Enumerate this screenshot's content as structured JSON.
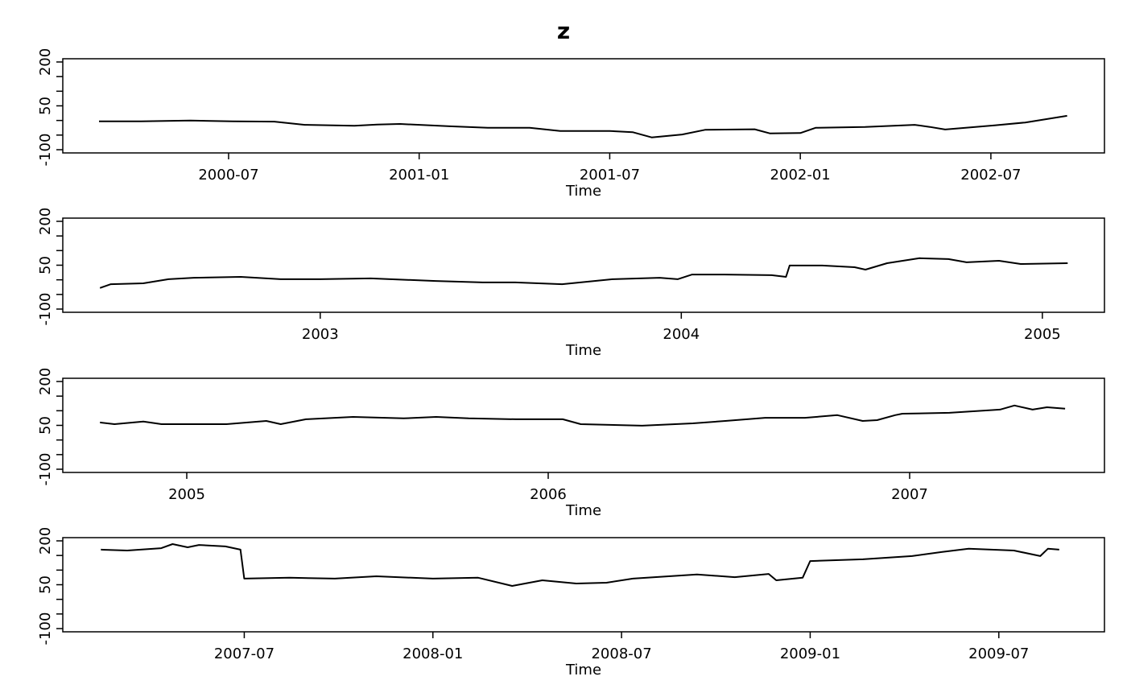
{
  "title": "z",
  "chart_data": [
    {
      "type": "line",
      "x_label": "Time",
      "color": "#000000",
      "x": [
        2000.16,
        2000.27,
        2000.4,
        2000.51,
        2000.62,
        2000.7,
        2000.83,
        2000.89,
        2000.95,
        2001.08,
        2001.18,
        2001.29,
        2001.37,
        2001.5,
        2001.56,
        2001.61,
        2001.69,
        2001.75,
        2001.88,
        2001.92,
        2002.0,
        2002.04,
        2002.17,
        2002.3,
        2002.34,
        2002.38,
        2002.51,
        2002.59,
        2002.7
      ],
      "values": [
        -3,
        -3,
        0,
        -3,
        -4,
        -15,
        -18,
        -14,
        -12,
        -20,
        -25,
        -25,
        -36,
        -36,
        -40,
        -58,
        -48,
        -32,
        -30,
        -44,
        -43,
        -25,
        -22,
        -15,
        -22,
        -31,
        -17,
        -7,
        16
      ],
      "xlim": [
        2000.065,
        2002.798
      ],
      "xticks": [
        {
          "value": 2000.5,
          "label": "2000-07"
        },
        {
          "value": 2001.0,
          "label": "2001-01"
        },
        {
          "value": 2001.5,
          "label": "2001-07"
        },
        {
          "value": 2002.0,
          "label": "2002-01"
        },
        {
          "value": 2002.5,
          "label": "2002-07"
        }
      ],
      "ylim": [
        -111,
        211
      ],
      "yticks": [
        -100,
        -50,
        0,
        50,
        100,
        150,
        200
      ],
      "ylabels": [
        -100,
        50,
        200
      ]
    },
    {
      "type": "line",
      "x_label": "Time",
      "color": "#000000",
      "x": [
        2002.39,
        2002.42,
        2002.51,
        2002.58,
        2002.65,
        2002.78,
        2002.89,
        2003.0,
        2003.14,
        2003.32,
        2003.45,
        2003.54,
        2003.67,
        2003.81,
        2003.94,
        2003.99,
        2004.03,
        2004.12,
        2004.25,
        2004.29,
        2004.3,
        2004.39,
        2004.48,
        2004.51,
        2004.57,
        2004.66,
        2004.74,
        2004.79,
        2004.88,
        2004.94,
        2005.07
      ],
      "values": [
        -28,
        -15,
        -12,
        2,
        7,
        10,
        2,
        2,
        5,
        -4,
        -9,
        -9,
        -15,
        2,
        7,
        2,
        18,
        18,
        16,
        10,
        49,
        49,
        43,
        35,
        57,
        74,
        71,
        60,
        65,
        54,
        57
      ],
      "xlim": [
        2002.287,
        2005.172
      ],
      "xticks": [
        2003,
        2004,
        2005
      ],
      "ylim": [
        -111,
        211
      ],
      "yticks": [
        -100,
        -50,
        0,
        50,
        100,
        150,
        200
      ],
      "ylabels": [
        -100,
        50,
        200
      ]
    },
    {
      "type": "line",
      "x_label": "Time",
      "color": "#000000",
      "x": [
        2004.76,
        2004.8,
        2004.88,
        2004.93,
        2005.11,
        2005.22,
        2005.26,
        2005.33,
        2005.46,
        2005.6,
        2005.69,
        2005.78,
        2005.91,
        2006.04,
        2006.09,
        2006.26,
        2006.4,
        2006.49,
        2006.6,
        2006.71,
        2006.8,
        2006.87,
        2006.91,
        2006.96,
        2006.98,
        2007.11,
        2007.25,
        2007.29,
        2007.34,
        2007.38,
        2007.43
      ],
      "values": [
        60,
        54,
        63,
        54,
        54,
        65,
        54,
        71,
        79,
        74,
        79,
        74,
        71,
        71,
        54,
        49,
        57,
        65,
        76,
        76,
        85,
        65,
        68,
        85,
        90,
        93,
        104,
        118,
        104,
        112,
        107
      ],
      "xlim": [
        2004.657,
        2007.539
      ],
      "xticks": [
        2005,
        2006,
        2007
      ],
      "ylim": [
        -111,
        211
      ],
      "yticks": [
        -100,
        -50,
        0,
        50,
        100,
        150,
        200
      ],
      "ylabels": [
        -100,
        50,
        200
      ]
    },
    {
      "type": "line",
      "x_label": "Time",
      "color": "#000000",
      "x": [
        2007.12,
        2007.19,
        2007.28,
        2007.31,
        2007.35,
        2007.38,
        2007.45,
        2007.49,
        2007.5,
        2007.62,
        2007.74,
        2007.85,
        2008.0,
        2008.12,
        2008.21,
        2008.29,
        2008.38,
        2008.46,
        2008.53,
        2008.7,
        2008.8,
        2008.89,
        2008.91,
        2008.98,
        2009.0,
        2009.14,
        2009.27,
        2009.35,
        2009.42,
        2009.54,
        2009.61,
        2009.63,
        2009.66
      ],
      "values": [
        170,
        167,
        175,
        189,
        178,
        186,
        181,
        170,
        71,
        74,
        71,
        79,
        71,
        74,
        46,
        65,
        54,
        57,
        71,
        85,
        76,
        87,
        65,
        74,
        131,
        137,
        148,
        162,
        173,
        167,
        148,
        173,
        170
      ],
      "xlim": [
        2007.019,
        2009.78
      ],
      "xticks": [
        {
          "value": 2007.5,
          "label": "2007-07"
        },
        {
          "value": 2008.0,
          "label": "2008-01"
        },
        {
          "value": 2008.5,
          "label": "2008-07"
        },
        {
          "value": 2009.0,
          "label": "2009-01"
        },
        {
          "value": 2009.5,
          "label": "2009-07"
        }
      ],
      "ylim": [
        -111,
        211
      ],
      "yticks": [
        -100,
        -50,
        0,
        50,
        100,
        150,
        200
      ],
      "ylabels": [
        -100,
        50,
        200
      ]
    }
  ]
}
